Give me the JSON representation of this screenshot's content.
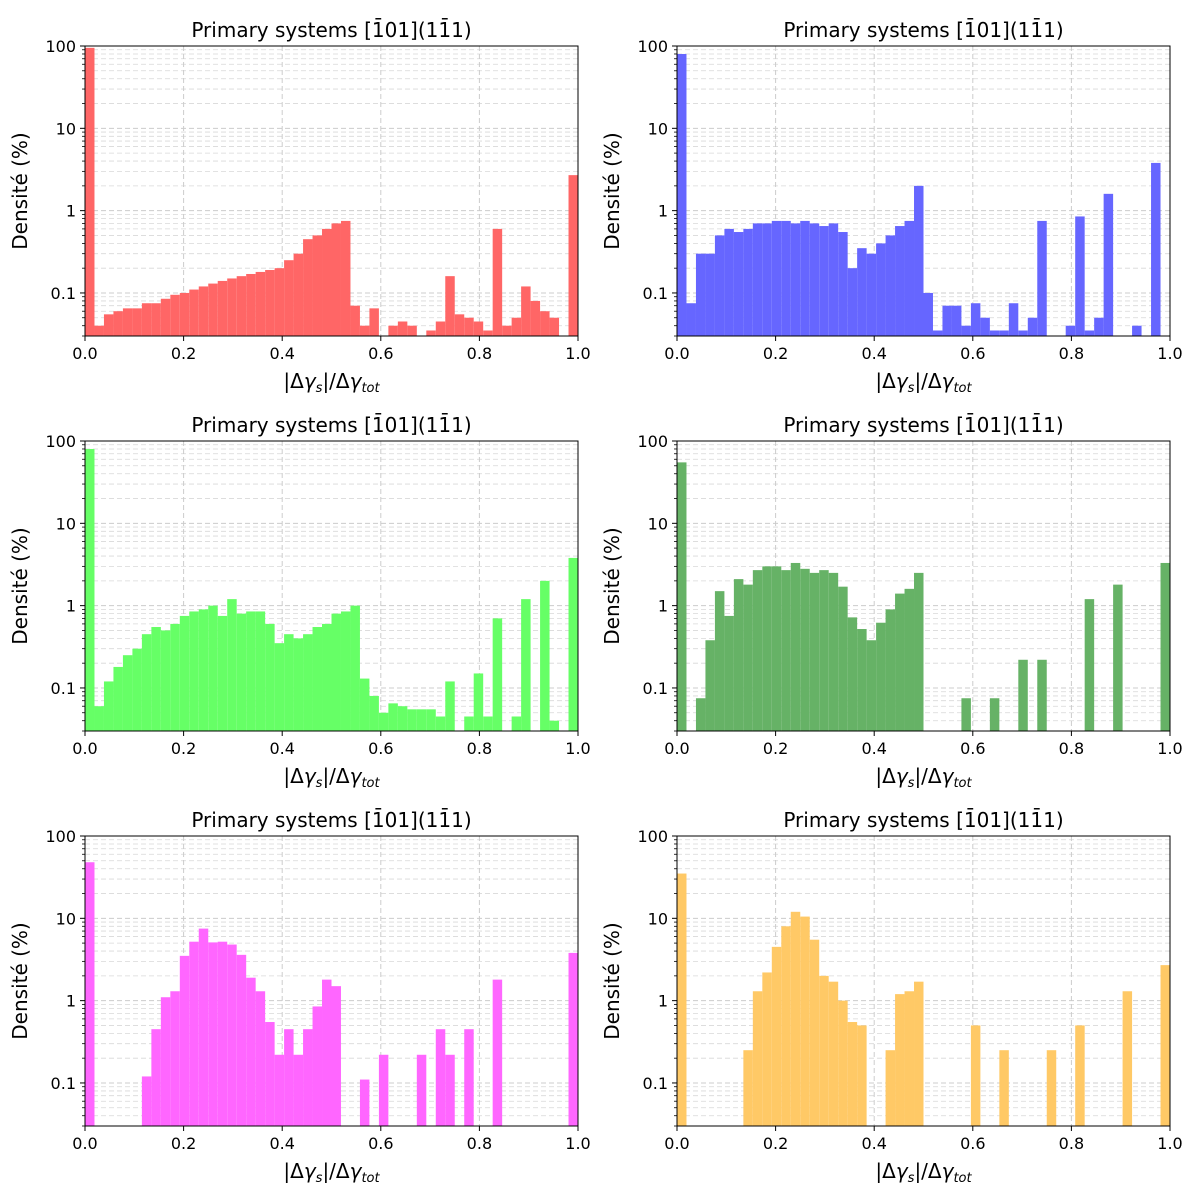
{
  "figure": {
    "background": "#ffffff",
    "grid_color": "#cccccc",
    "ylim_pct": [
      0.03,
      100
    ]
  },
  "chart_data": [
    {
      "type": "bar",
      "title": "Primary systems [1̄01](11̄1)",
      "xlabel": "|Δγs|/Δγtot",
      "ylabel": "Densité (%)",
      "xlim": [
        0,
        1
      ],
      "yscale": "log",
      "x_ticks": [
        "0.0",
        "0.2",
        "0.4",
        "0.6",
        "0.8",
        "1.0"
      ],
      "y_ticks": [
        "100",
        "10",
        "1",
        "0.1"
      ],
      "color": "#ff6666",
      "bin_width": 0.0164,
      "values": [
        95,
        0.04,
        0.055,
        0.06,
        0.065,
        0.065,
        0.075,
        0.075,
        0.085,
        0.095,
        0.1,
        0.11,
        0.12,
        0.13,
        0.14,
        0.15,
        0.16,
        0.17,
        0.18,
        0.19,
        0.2,
        0.25,
        0.3,
        0.45,
        0.5,
        0.6,
        0.7,
        0.75,
        0.07,
        0.04,
        0.065,
        0.03,
        0.04,
        0.045,
        0.04,
        0.03,
        0.035,
        0.045,
        0.16,
        0.055,
        0.05,
        0.045,
        0.035,
        0.6,
        0.04,
        0.05,
        0.12,
        0.08,
        0.06,
        0.05,
        0.03,
        2.7
      ],
      "bin_mode": "linear"
    },
    {
      "type": "bar",
      "title": "Primary systems [1̄01](11̄1)",
      "xlabel": "|Δγs|/Δγtot",
      "ylabel": "Densité (%)",
      "xlim": [
        0,
        1
      ],
      "yscale": "log",
      "x_ticks": [
        "0.0",
        "0.2",
        "0.4",
        "0.6",
        "0.8",
        "1.0"
      ],
      "y_ticks": [
        "100",
        "10",
        "1",
        "0.1"
      ],
      "color": "#6666ff",
      "bin_width": 0.0164,
      "values": [
        80,
        0.075,
        0.3,
        0.3,
        0.5,
        0.6,
        0.55,
        0.6,
        0.7,
        0.7,
        0.75,
        0.75,
        0.7,
        0.75,
        0.7,
        0.65,
        0.7,
        0.55,
        0.2,
        0.35,
        0.3,
        0.4,
        0.5,
        0.65,
        0.75,
        2.0,
        0.1,
        0.035,
        0.07,
        0.07,
        0.04,
        0.075,
        0.05,
        0.035,
        0.035,
        0.075,
        0.035,
        0.05,
        0.75,
        0.0,
        0.02,
        0.04,
        0.85,
        0.035,
        0.05,
        1.6,
        0.02,
        0.0,
        0.04,
        0.02,
        3.8,
        0.0
      ],
      "bin_mode": "linear"
    },
    {
      "type": "bar",
      "title": "Primary systems [1̄01](11̄1)",
      "xlabel": "|Δγs|/Δγtot",
      "ylabel": "Densité (%)",
      "xlim": [
        0,
        1
      ],
      "yscale": "log",
      "x_ticks": [
        "0.0",
        "0.2",
        "0.4",
        "0.6",
        "0.8",
        "1.0"
      ],
      "y_ticks": [
        "100",
        "10",
        "1",
        "0.1"
      ],
      "color": "#66ff66",
      "bin_width": 0.0164,
      "values": [
        80,
        0.06,
        0.12,
        0.18,
        0.25,
        0.3,
        0.45,
        0.55,
        0.5,
        0.6,
        0.75,
        0.85,
        0.9,
        1.0,
        0.75,
        1.2,
        0.8,
        0.85,
        0.85,
        0.6,
        0.35,
        0.45,
        0.4,
        0.45,
        0.55,
        0.6,
        0.8,
        0.85,
        1.0,
        0.13,
        0.08,
        0.05,
        0.065,
        0.06,
        0.055,
        0.055,
        0.055,
        0.045,
        0.12,
        0.025,
        0.045,
        0.15,
        0.045,
        0.7,
        0.025,
        0.045,
        1.2,
        0.025,
        2.0,
        0.04,
        0.0,
        3.8
      ],
      "bin_mode": "linear"
    },
    {
      "type": "bar",
      "title": "Primary systems [1̄01](11̄1)",
      "xlabel": "|Δγs|/Δγtot",
      "ylabel": "Densité (%)",
      "xlim": [
        0,
        1
      ],
      "yscale": "log",
      "x_ticks": [
        "0.0",
        "0.2",
        "0.4",
        "0.6",
        "0.8",
        "1.0"
      ],
      "y_ticks": [
        "100",
        "10",
        "1",
        "0.1"
      ],
      "color": "#66b266",
      "bin_width": 0.0164,
      "values": [
        55,
        0.0,
        0.075,
        0.38,
        1.5,
        0.75,
        2.1,
        1.8,
        2.7,
        3.0,
        3.0,
        2.7,
        3.3,
        2.8,
        2.5,
        2.7,
        2.5,
        1.7,
        0.72,
        0.52,
        0.38,
        0.62,
        0.9,
        1.4,
        1.6,
        2.5,
        0.0,
        0.0,
        0.0,
        0.0,
        0.075,
        0.0,
        0.0,
        0.075,
        0.0,
        0.0,
        0.22,
        0.0,
        0.22,
        0.0,
        0.0,
        0.0,
        0.0,
        1.2,
        0.0,
        0.0,
        1.8,
        0.0,
        0.0,
        0.0,
        0.0,
        3.3
      ],
      "bin_mode": "linear"
    },
    {
      "type": "bar",
      "title": "Primary systems [1̄01](11̄1)",
      "xlabel": "|Δγs|/Δγtot",
      "ylabel": "Densité (%)",
      "xlim": [
        0,
        1
      ],
      "yscale": "log",
      "x_ticks": [
        "0.0",
        "0.2",
        "0.4",
        "0.6",
        "0.8",
        "1.0"
      ],
      "y_ticks": [
        "100",
        "10",
        "1",
        "0.1"
      ],
      "color": "#ff66ff",
      "bin_width": 0.0164,
      "values": [
        48,
        0.0,
        0.0,
        0.0,
        0.0,
        0.0,
        0.12,
        0.45,
        1.1,
        1.3,
        3.5,
        5.2,
        7.5,
        5.1,
        5.2,
        4.8,
        3.6,
        1.9,
        1.3,
        0.55,
        0.22,
        0.45,
        0.22,
        0.45,
        0.85,
        1.8,
        1.5,
        0.0,
        0.0,
        0.11,
        0.0,
        0.22,
        0.0,
        0.0,
        0.0,
        0.22,
        0.0,
        0.45,
        0.22,
        0.0,
        0.45,
        0.0,
        0.0,
        1.8,
        0.0,
        0.0,
        0.0,
        0.0,
        0.0,
        0.0,
        0.0,
        3.8
      ],
      "bin_mode": "linear"
    },
    {
      "type": "bar",
      "title": "Primary systems [1̄01](11̄1)",
      "xlabel": "|Δγs|/Δγtot",
      "ylabel": "Densité (%)",
      "xlim": [
        0,
        1
      ],
      "yscale": "log",
      "x_ticks": [
        "0.0",
        "0.2",
        "0.4",
        "0.6",
        "0.8",
        "1.0"
      ],
      "y_ticks": [
        "100",
        "10",
        "1",
        "0.1"
      ],
      "color": "#ffc966",
      "bin_width": 0.0164,
      "values": [
        35,
        0.0,
        0.0,
        0.0,
        0.0,
        0.0,
        0.0,
        0.25,
        1.3,
        2.2,
        4.5,
        8.0,
        12.0,
        10.5,
        5.5,
        2.0,
        1.7,
        1.0,
        0.55,
        0.5,
        0.0,
        0.0,
        0.25,
        1.2,
        1.3,
        1.7,
        0.0,
        0.0,
        0.0,
        0.0,
        0.0,
        0.5,
        0.0,
        0.0,
        0.25,
        0.0,
        0.0,
        0.0,
        0.0,
        0.25,
        0.0,
        0.0,
        0.5,
        0.0,
        0.0,
        0.0,
        0.0,
        1.3,
        0.0,
        0.0,
        0.0,
        2.7
      ],
      "bin_mode": "linear"
    }
  ]
}
